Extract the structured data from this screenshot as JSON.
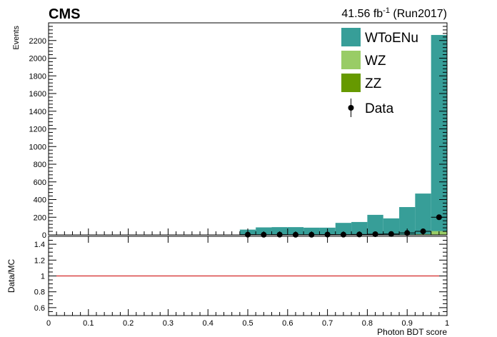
{
  "header": {
    "experiment": "CMS",
    "lumi_value": "41.56 fb",
    "lumi_exp": "-1",
    "lumi_run": " (Run2017)"
  },
  "colors": {
    "wtoenu": "#379e98",
    "wz": "#99cc66",
    "zz": "#669900",
    "data": "#000000",
    "ratio_line": "#cc0000"
  },
  "chart_data": [
    {
      "type": "bar",
      "stacked": true,
      "xlabel": "",
      "ylabel": "Events",
      "xlim": [
        0,
        1
      ],
      "ylim": [
        0,
        2400
      ],
      "yticks": [
        0,
        200,
        400,
        600,
        800,
        1000,
        1200,
        1400,
        1600,
        1800,
        2000,
        2200
      ],
      "bin_edges": [
        0.48,
        0.52,
        0.56,
        0.6,
        0.64,
        0.68,
        0.72,
        0.76,
        0.8,
        0.84,
        0.88,
        0.92,
        0.96,
        1.0
      ],
      "series": [
        {
          "name": "WToENu",
          "values": [
            60,
            85,
            88,
            88,
            82,
            82,
            135,
            145,
            225,
            185,
            310,
            460,
            2220
          ]
        },
        {
          "name": "WZ",
          "values": [
            0,
            0,
            0,
            0,
            0,
            0,
            1,
            1,
            2,
            2,
            4,
            7,
            40
          ]
        },
        {
          "name": "ZZ",
          "values": [
            0,
            0,
            0,
            0,
            0,
            0,
            0,
            0,
            0,
            0,
            1,
            1,
            3
          ]
        }
      ],
      "data_points": {
        "name": "Data",
        "x": [
          0.5,
          0.54,
          0.58,
          0.62,
          0.66,
          0.7,
          0.74,
          0.78,
          0.82,
          0.86,
          0.9,
          0.94,
          0.98
        ],
        "y": [
          3,
          2,
          3,
          2,
          2,
          4,
          3,
          5,
          8,
          10,
          22,
          40,
          200
        ]
      },
      "legend": [
        "WToENu",
        "WZ",
        "ZZ",
        "Data"
      ],
      "legend_position": "top-right"
    },
    {
      "type": "line",
      "xlabel": "Photon BDT score",
      "ylabel": "Data/MC",
      "xlim": [
        0,
        1
      ],
      "ylim": [
        0.5,
        1.5
      ],
      "xticks": [
        0,
        0.1,
        0.2,
        0.3,
        0.4,
        0.5,
        0.6,
        0.7,
        0.8,
        0.9,
        1
      ],
      "yticks": [
        0.6,
        0.8,
        1,
        1.2,
        1.4
      ],
      "reference_line": 1
    }
  ]
}
